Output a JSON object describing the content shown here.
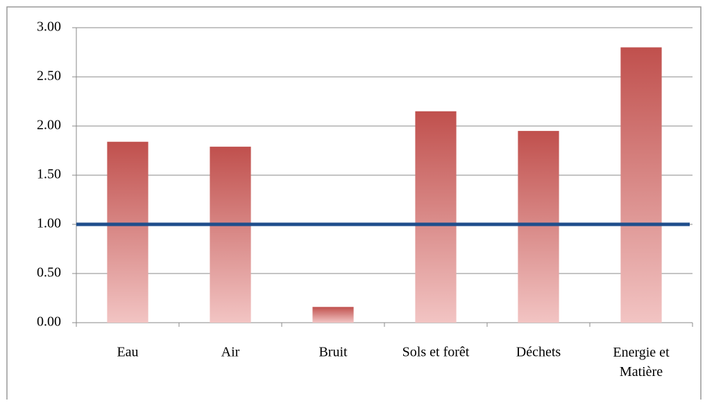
{
  "chart_data": {
    "type": "bar",
    "categories": [
      "Eau",
      "Air",
      "Bruit",
      "Sols et forêt",
      "Déchets",
      "Energie et\nMatière"
    ],
    "values": [
      1.84,
      1.79,
      0.16,
      2.15,
      1.95,
      2.8
    ],
    "color": "#c0504d",
    "ylim": [
      0,
      3
    ],
    "yticks": [
      {
        "value": 0,
        "label": "0.00"
      },
      {
        "value": 0.5,
        "label": "0.50"
      },
      {
        "value": 1,
        "label": "1.00"
      },
      {
        "value": 1.5,
        "label": "1.50"
      },
      {
        "value": 2,
        "label": "2.00"
      },
      {
        "value": 2.5,
        "label": "2.50"
      },
      {
        "value": 3,
        "label": "3.00"
      }
    ],
    "grid": true,
    "reference_line": {
      "value": 1,
      "color": "#1f4e8c"
    }
  }
}
